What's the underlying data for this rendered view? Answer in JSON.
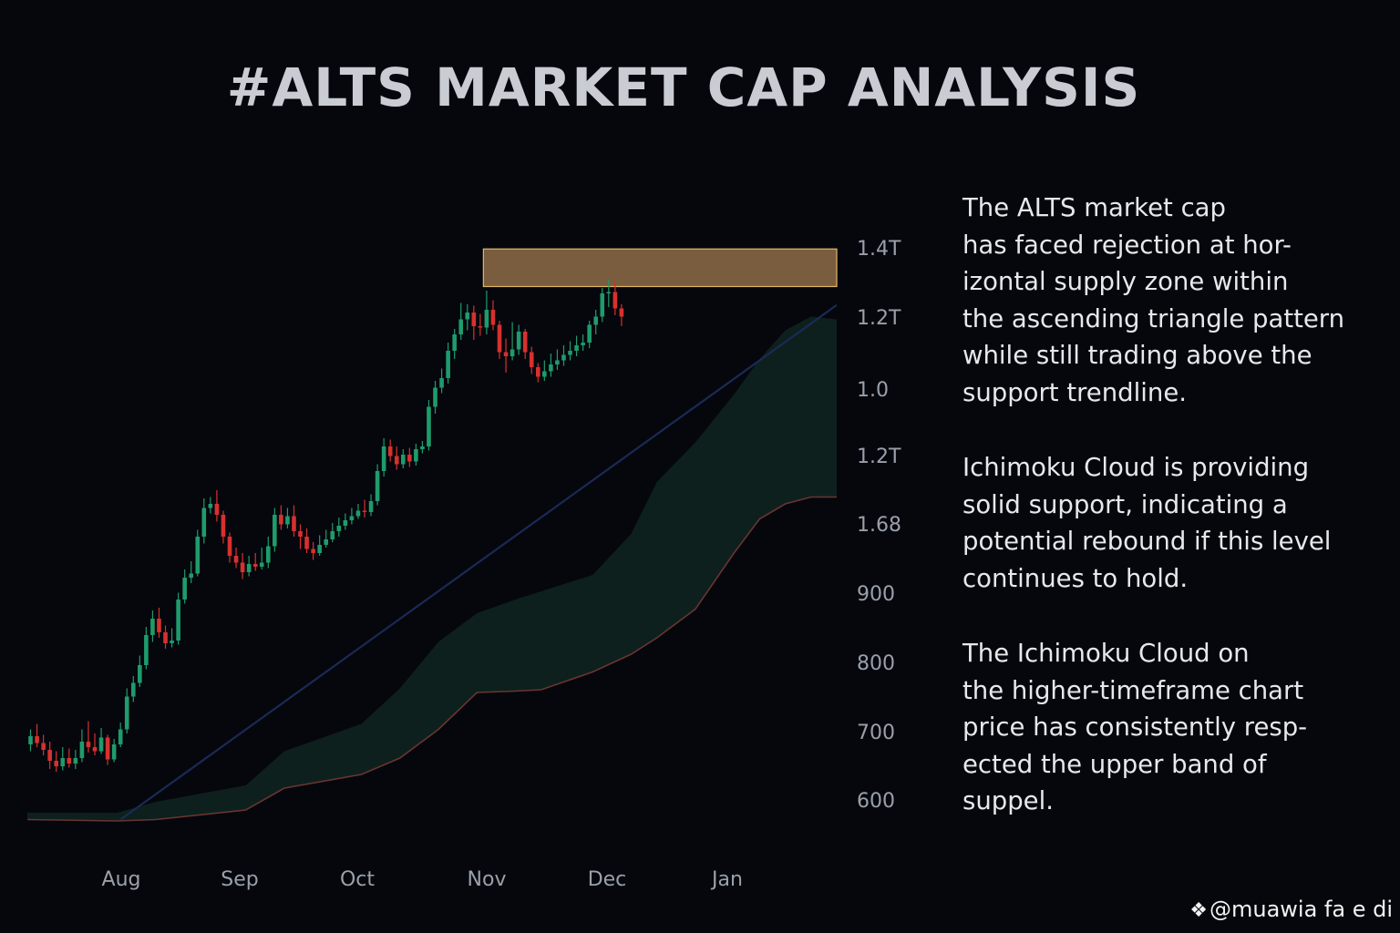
{
  "colors": {
    "background": "#05070d",
    "bull": "#1f9b6c",
    "bear": "#d6312f",
    "supply_zone": "#7a5d3e",
    "supply_border": "#e2b766",
    "trendline": "#1b2a55",
    "cloud": "#0f2421",
    "cloud_lower": "#6b3430"
  },
  "chart_data": {
    "type": "candlestick",
    "title": "#ALTS MARKET CAP ANALYSIS",
    "y_tick_labels": [
      "1.4T",
      "1.2T",
      "1.0",
      "1.2T",
      "1.68",
      "900",
      "800",
      "700",
      "600"
    ],
    "x_tick_labels": [
      "Aug",
      "Sep",
      "Oct",
      "Nov",
      "Dec",
      "Jan"
    ],
    "y_range": [
      560,
      1480
    ],
    "x_range": [
      0,
      126
    ],
    "candles": [
      {
        "o": 700,
        "c": 712,
        "h": 722,
        "l": 690
      },
      {
        "o": 712,
        "c": 702,
        "h": 730,
        "l": 696
      },
      {
        "o": 702,
        "c": 692,
        "h": 714,
        "l": 684
      },
      {
        "o": 692,
        "c": 676,
        "h": 704,
        "l": 664
      },
      {
        "o": 676,
        "c": 668,
        "h": 690,
        "l": 660
      },
      {
        "o": 668,
        "c": 680,
        "h": 696,
        "l": 662
      },
      {
        "o": 680,
        "c": 672,
        "h": 694,
        "l": 666
      },
      {
        "o": 672,
        "c": 680,
        "h": 692,
        "l": 664
      },
      {
        "o": 680,
        "c": 704,
        "h": 722,
        "l": 674
      },
      {
        "o": 704,
        "c": 696,
        "h": 734,
        "l": 688
      },
      {
        "o": 696,
        "c": 690,
        "h": 716,
        "l": 684
      },
      {
        "o": 690,
        "c": 710,
        "h": 724,
        "l": 686
      },
      {
        "o": 710,
        "c": 678,
        "h": 714,
        "l": 670
      },
      {
        "o": 678,
        "c": 700,
        "h": 708,
        "l": 674
      },
      {
        "o": 700,
        "c": 722,
        "h": 732,
        "l": 696
      },
      {
        "o": 722,
        "c": 770,
        "h": 782,
        "l": 716
      },
      {
        "o": 770,
        "c": 790,
        "h": 800,
        "l": 762
      },
      {
        "o": 790,
        "c": 816,
        "h": 830,
        "l": 784
      },
      {
        "o": 816,
        "c": 860,
        "h": 872,
        "l": 810
      },
      {
        "o": 860,
        "c": 884,
        "h": 896,
        "l": 850
      },
      {
        "o": 884,
        "c": 864,
        "h": 900,
        "l": 856
      },
      {
        "o": 864,
        "c": 848,
        "h": 874,
        "l": 840
      },
      {
        "o": 848,
        "c": 852,
        "h": 870,
        "l": 842
      },
      {
        "o": 852,
        "c": 912,
        "h": 922,
        "l": 846
      },
      {
        "o": 912,
        "c": 944,
        "h": 956,
        "l": 906
      },
      {
        "o": 944,
        "c": 950,
        "h": 968,
        "l": 936
      },
      {
        "o": 950,
        "c": 1004,
        "h": 1014,
        "l": 946
      },
      {
        "o": 1004,
        "c": 1046,
        "h": 1060,
        "l": 994
      },
      {
        "o": 1046,
        "c": 1052,
        "h": 1062,
        "l": 1038
      },
      {
        "o": 1052,
        "c": 1036,
        "h": 1072,
        "l": 1026
      },
      {
        "o": 1036,
        "c": 1004,
        "h": 1042,
        "l": 994
      },
      {
        "o": 1004,
        "c": 976,
        "h": 1010,
        "l": 966
      },
      {
        "o": 976,
        "c": 966,
        "h": 988,
        "l": 958
      },
      {
        "o": 966,
        "c": 952,
        "h": 980,
        "l": 942
      },
      {
        "o": 952,
        "c": 964,
        "h": 976,
        "l": 946
      },
      {
        "o": 964,
        "c": 960,
        "h": 980,
        "l": 954
      },
      {
        "o": 960,
        "c": 966,
        "h": 988,
        "l": 956
      },
      {
        "o": 966,
        "c": 990,
        "h": 1004,
        "l": 958
      },
      {
        "o": 990,
        "c": 1036,
        "h": 1046,
        "l": 982
      },
      {
        "o": 1036,
        "c": 1022,
        "h": 1050,
        "l": 1014
      },
      {
        "o": 1022,
        "c": 1034,
        "h": 1046,
        "l": 1016
      },
      {
        "o": 1034,
        "c": 1012,
        "h": 1050,
        "l": 1004
      },
      {
        "o": 1012,
        "c": 1004,
        "h": 1022,
        "l": 986
      },
      {
        "o": 1004,
        "c": 986,
        "h": 1016,
        "l": 980
      },
      {
        "o": 986,
        "c": 980,
        "h": 996,
        "l": 970
      },
      {
        "o": 980,
        "c": 992,
        "h": 1006,
        "l": 976
      },
      {
        "o": 992,
        "c": 1000,
        "h": 1014,
        "l": 988
      },
      {
        "o": 1000,
        "c": 1012,
        "h": 1024,
        "l": 996
      },
      {
        "o": 1012,
        "c": 1020,
        "h": 1032,
        "l": 1004
      },
      {
        "o": 1020,
        "c": 1028,
        "h": 1038,
        "l": 1014
      },
      {
        "o": 1028,
        "c": 1034,
        "h": 1046,
        "l": 1022
      },
      {
        "o": 1034,
        "c": 1042,
        "h": 1052,
        "l": 1030
      },
      {
        "o": 1042,
        "c": 1040,
        "h": 1058,
        "l": 1032
      },
      {
        "o": 1040,
        "c": 1056,
        "h": 1066,
        "l": 1034
      },
      {
        "o": 1056,
        "c": 1100,
        "h": 1110,
        "l": 1050
      },
      {
        "o": 1100,
        "c": 1136,
        "h": 1148,
        "l": 1092
      },
      {
        "o": 1136,
        "c": 1122,
        "h": 1146,
        "l": 1114
      },
      {
        "o": 1122,
        "c": 1110,
        "h": 1136,
        "l": 1102
      },
      {
        "o": 1110,
        "c": 1124,
        "h": 1132,
        "l": 1104
      },
      {
        "o": 1124,
        "c": 1114,
        "h": 1134,
        "l": 1106
      },
      {
        "o": 1114,
        "c": 1132,
        "h": 1140,
        "l": 1108
      },
      {
        "o": 1132,
        "c": 1136,
        "h": 1144,
        "l": 1126
      },
      {
        "o": 1136,
        "c": 1194,
        "h": 1204,
        "l": 1130
      },
      {
        "o": 1194,
        "c": 1222,
        "h": 1232,
        "l": 1184
      },
      {
        "o": 1222,
        "c": 1236,
        "h": 1250,
        "l": 1214
      },
      {
        "o": 1236,
        "c": 1276,
        "h": 1288,
        "l": 1228
      },
      {
        "o": 1276,
        "c": 1300,
        "h": 1308,
        "l": 1264
      },
      {
        "o": 1300,
        "c": 1322,
        "h": 1346,
        "l": 1292
      },
      {
        "o": 1322,
        "c": 1332,
        "h": 1344,
        "l": 1306
      },
      {
        "o": 1332,
        "c": 1312,
        "h": 1342,
        "l": 1292
      },
      {
        "o": 1312,
        "c": 1310,
        "h": 1330,
        "l": 1298
      },
      {
        "o": 1310,
        "c": 1336,
        "h": 1364,
        "l": 1300
      },
      {
        "o": 1336,
        "c": 1314,
        "h": 1350,
        "l": 1306
      },
      {
        "o": 1314,
        "c": 1274,
        "h": 1320,
        "l": 1264
      },
      {
        "o": 1274,
        "c": 1268,
        "h": 1294,
        "l": 1244
      },
      {
        "o": 1268,
        "c": 1278,
        "h": 1318,
        "l": 1262
      },
      {
        "o": 1278,
        "c": 1304,
        "h": 1314,
        "l": 1270
      },
      {
        "o": 1304,
        "c": 1274,
        "h": 1308,
        "l": 1264
      },
      {
        "o": 1274,
        "c": 1252,
        "h": 1282,
        "l": 1242
      },
      {
        "o": 1252,
        "c": 1238,
        "h": 1258,
        "l": 1230
      },
      {
        "o": 1238,
        "c": 1246,
        "h": 1262,
        "l": 1232
      },
      {
        "o": 1246,
        "c": 1256,
        "h": 1272,
        "l": 1238
      },
      {
        "o": 1256,
        "c": 1262,
        "h": 1278,
        "l": 1248
      },
      {
        "o": 1262,
        "c": 1270,
        "h": 1284,
        "l": 1254
      },
      {
        "o": 1270,
        "c": 1276,
        "h": 1290,
        "l": 1262
      },
      {
        "o": 1276,
        "c": 1284,
        "h": 1298,
        "l": 1268
      },
      {
        "o": 1284,
        "c": 1288,
        "h": 1300,
        "l": 1276
      },
      {
        "o": 1288,
        "c": 1314,
        "h": 1320,
        "l": 1280
      },
      {
        "o": 1314,
        "c": 1326,
        "h": 1336,
        "l": 1300
      },
      {
        "o": 1326,
        "c": 1360,
        "h": 1368,
        "l": 1318
      },
      {
        "o": 1360,
        "c": 1362,
        "h": 1380,
        "l": 1340
      },
      {
        "o": 1362,
        "c": 1338,
        "h": 1378,
        "l": 1328
      },
      {
        "o": 1338,
        "c": 1326,
        "h": 1344,
        "l": 1312
      }
    ],
    "supply_zone": {
      "x_start": 71,
      "x_end": 126,
      "y_low": 1370,
      "y_high": 1425
    },
    "trendline": {
      "x0": 14.5,
      "y0": 590,
      "x1": 126,
      "y1": 1343
    },
    "cloud": {
      "x": [
        0,
        14,
        20,
        34,
        40,
        52,
        58,
        64,
        70,
        76,
        80,
        88,
        94,
        98,
        104,
        110,
        114,
        118,
        122,
        126
      ],
      "upper": [
        600,
        600,
        616,
        640,
        690,
        730,
        782,
        850,
        892,
        912,
        924,
        948,
        1008,
        1084,
        1142,
        1212,
        1264,
        1306,
        1326,
        1322
      ],
      "lower": [
        590,
        588,
        590,
        604,
        636,
        656,
        680,
        722,
        776,
        778,
        780,
        806,
        832,
        856,
        898,
        980,
        1030,
        1052,
        1062,
        1062
      ]
    },
    "notes": [
      [
        "The ALTS market cap",
        "has faced rejection at hor-",
        "izontal supply zone within",
        "the ascending triangle pattern",
        "while still trading above the",
        "support trendline."
      ],
      [
        "Ichimoku Cloud is providing",
        "solid support, indicating a",
        "potential rebound if this level",
        "continues to hold."
      ],
      [
        "The Ichimoku Cloud on",
        "the higher-timeframe chart",
        "price has consistently resp-",
        "ected the upper band of",
        "suppel."
      ]
    ],
    "watermark": "@muawia fa  e  di"
  }
}
